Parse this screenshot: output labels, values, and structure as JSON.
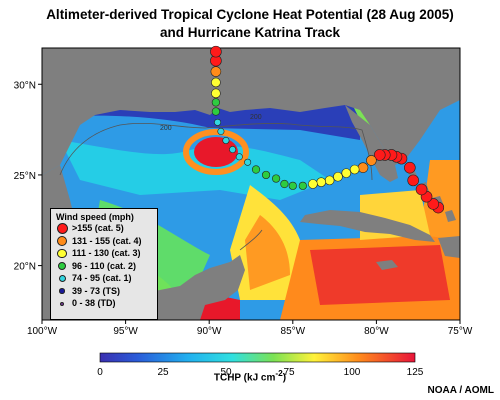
{
  "title_line1": "Altimeter-derived Tropical Cyclone Heat Potential (28 Aug 2005)",
  "title_line2": "and Hurricane Katrina Track",
  "credit": "NOAA / AOML",
  "map": {
    "lon_range": [
      -100,
      -75
    ],
    "lat_range": [
      17,
      32
    ],
    "x_ticks": [
      "100°W",
      "95°W",
      "90°W",
      "85°W",
      "80°W",
      "75°W"
    ],
    "y_ticks": [
      "20°N",
      "25°N",
      "30°N"
    ],
    "contour_labels": [
      "200",
      "200",
      "200"
    ],
    "colors": {
      "land": "#7f7f7f",
      "deep_blue": "#2a3fb8",
      "cyan": "#25d4e8",
      "green": "#6fe25a",
      "yellow": "#fff33a",
      "orange": "#ff8a1c",
      "red": "#e8182a"
    }
  },
  "legend": {
    "title": "Wind speed (mph)",
    "items": [
      {
        "label": ">155 (cat. 5)",
        "color": "#ff1a1a"
      },
      {
        "label": "131 - 155 (cat. 4)",
        "color": "#ff8c1a"
      },
      {
        "label": "111 - 130 (cat. 3)",
        "color": "#ffff33"
      },
      {
        "label": "96 - 110 (cat. 2)",
        "color": "#2ecc40"
      },
      {
        "label": "74 - 95 (cat. 1)",
        "color": "#33d6e0"
      },
      {
        "label": "39 - 73 (TS)",
        "color": "#1a1a99"
      },
      {
        "label": "0 - 38 (TD)",
        "color": "#7a3a9a"
      }
    ]
  },
  "colorbar": {
    "ticks": [
      "0",
      "25",
      "50",
      "75",
      "100",
      "125"
    ],
    "label": "TCHP (kJ cm",
    "label_sup": "-2",
    "label_end": ")"
  },
  "track": [
    {
      "lon": -76.3,
      "lat": 23.2,
      "cat": 5
    },
    {
      "lon": -76.6,
      "lat": 23.4,
      "cat": 5
    },
    {
      "lon": -77.0,
      "lat": 23.8,
      "cat": 5
    },
    {
      "lon": -77.3,
      "lat": 24.2,
      "cat": 5
    },
    {
      "lon": -77.8,
      "lat": 24.7,
      "cat": 5
    },
    {
      "lon": -78.0,
      "lat": 25.4,
      "cat": 5
    },
    {
      "lon": -78.5,
      "lat": 25.9,
      "cat": 5
    },
    {
      "lon": -78.8,
      "lat": 26.0,
      "cat": 5
    },
    {
      "lon": -79.1,
      "lat": 26.1,
      "cat": 5
    },
    {
      "lon": -79.5,
      "lat": 26.1,
      "cat": 5
    },
    {
      "lon": -79.8,
      "lat": 26.1,
      "cat": 5
    },
    {
      "lon": -80.3,
      "lat": 25.8,
      "cat": 4
    },
    {
      "lon": -80.8,
      "lat": 25.4,
      "cat": 4
    },
    {
      "lon": -81.3,
      "lat": 25.3,
      "cat": 3
    },
    {
      "lon": -81.8,
      "lat": 25.1,
      "cat": 3
    },
    {
      "lon": -82.3,
      "lat": 24.9,
      "cat": 3
    },
    {
      "lon": -82.8,
      "lat": 24.7,
      "cat": 3
    },
    {
      "lon": -83.3,
      "lat": 24.6,
      "cat": 3
    },
    {
      "lon": -83.8,
      "lat": 24.5,
      "cat": 3
    },
    {
      "lon": -84.4,
      "lat": 24.4,
      "cat": 2
    },
    {
      "lon": -85.0,
      "lat": 24.4,
      "cat": 2
    },
    {
      "lon": -85.5,
      "lat": 24.5,
      "cat": 2
    },
    {
      "lon": -86.0,
      "lat": 24.8,
      "cat": 2
    },
    {
      "lon": -86.6,
      "lat": 25.0,
      "cat": 2
    },
    {
      "lon": -87.2,
      "lat": 25.3,
      "cat": 2
    },
    {
      "lon": -87.7,
      "lat": 25.7,
      "cat": 1
    },
    {
      "lon": -88.2,
      "lat": 26.0,
      "cat": 1
    },
    {
      "lon": -88.6,
      "lat": 26.4,
      "cat": 1
    },
    {
      "lon": -89.0,
      "lat": 26.9,
      "cat": 1
    },
    {
      "lon": -89.3,
      "lat": 27.4,
      "cat": 1
    },
    {
      "lon": -89.5,
      "lat": 27.9,
      "cat": 1
    },
    {
      "lon": -89.6,
      "lat": 28.5,
      "cat": 2
    },
    {
      "lon": -89.6,
      "lat": 29.0,
      "cat": 2
    },
    {
      "lon": -89.6,
      "lat": 29.5,
      "cat": 3
    },
    {
      "lon": -89.6,
      "lat": 30.1,
      "cat": 3
    },
    {
      "lon": -89.6,
      "lat": 30.7,
      "cat": 4
    },
    {
      "lon": -89.6,
      "lat": 31.3,
      "cat": 5
    },
    {
      "lon": -89.6,
      "lat": 31.8,
      "cat": 5
    }
  ]
}
